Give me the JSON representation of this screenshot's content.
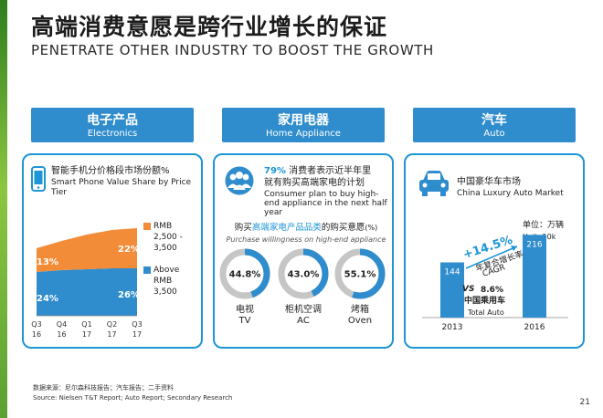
{
  "title": "高端消费意愿是跨行业增长的保证",
  "subtitle": "PENETRATE OTHER INDUSTRY TO BOOST THE GROWTH",
  "headers": {
    "electronics": {
      "zh": "电子产品",
      "en": "Electronics"
    },
    "home": {
      "zh": "家用电器",
      "en": "Home Appliance"
    },
    "auto": {
      "zh": "汽车",
      "en": "Auto"
    }
  },
  "electronics": {
    "title_zh": "智能手机分价格段市场份额%",
    "title_en": "Smart Phone Value Share by Price Tier",
    "legend": [
      {
        "label": "RMB 2,500 - 3,500",
        "color": "#f28c38"
      },
      {
        "label": "Above RMB 3,500",
        "color": "#2f8ccd"
      }
    ],
    "start_label_upper": "13%",
    "start_label_lower": "24%",
    "end_label_upper": "22%",
    "end_label_lower": "26%"
  },
  "home": {
    "pct": "79%",
    "line1": "消费者表示近半年里",
    "line2": "就有购买高端家电的计划",
    "en": "Consumer plan to buy high-end appliance in the next half year",
    "q_pre": "购买",
    "q_hl": "高端家电产品品类",
    "q_post": "的购买意愿",
    "q_unit": "(%)",
    "q_en": "Purchase willingness on high-end appliance",
    "donut_labels": [
      {
        "zh": "电视",
        "en": "TV"
      },
      {
        "zh": "柜机空调",
        "en": "AC"
      },
      {
        "zh": "烤箱",
        "en": "Oven"
      }
    ]
  },
  "auto": {
    "market_zh": "中国豪华车市场",
    "market_en": "China Luxury Auto Market",
    "unit_zh": "单位：万辆",
    "unit_en": "Unit: 10k",
    "cagr_value": "+14.5%",
    "cagr_zh": "年复合增长率",
    "cagr_en": "CAGR",
    "vs": "VS",
    "total_value": "8.6%",
    "total_zh": "中国乘用车",
    "total_en": "Total Auto"
  },
  "source_zh": "数据来源：尼尔森科技报告；汽车报告；二手资料",
  "source_en": "Source: Nielsen T&T Report; Auto Report; Secondary Research",
  "page_number": "21",
  "chart_data": [
    {
      "type": "area",
      "title": "智能手机分价格段市场份额%",
      "categories": [
        "Q3 16",
        "Q4 16",
        "Q1 17",
        "Q2 17",
        "Q3 17"
      ],
      "series": [
        {
          "name": "Above RMB 3,500",
          "values": [
            24,
            25,
            25.5,
            26,
            26
          ],
          "color": "#2f8ccd"
        },
        {
          "name": "RMB 2,500 - 3,500",
          "values": [
            13,
            16,
            19,
            21,
            22
          ],
          "color": "#f28c38"
        }
      ],
      "stacked": true
    },
    {
      "type": "pie",
      "title": "购买高端家电产品品类的购买意愿 (%)",
      "categories": [
        "TV",
        "AC",
        "Oven"
      ],
      "values": [
        44.8,
        43.0,
        55.1
      ],
      "labels": [
        "44.8%",
        "43.0%",
        "55.1%"
      ],
      "color": "#2f8ccd",
      "track_color": "#c6c6c6"
    },
    {
      "type": "bar",
      "title": "China Luxury Auto Market",
      "categories": [
        "2013",
        "2016"
      ],
      "values": [
        144,
        216
      ],
      "ylabel": "单位：万辆 Unit: 10k",
      "color": "#2f8ccd"
    }
  ]
}
